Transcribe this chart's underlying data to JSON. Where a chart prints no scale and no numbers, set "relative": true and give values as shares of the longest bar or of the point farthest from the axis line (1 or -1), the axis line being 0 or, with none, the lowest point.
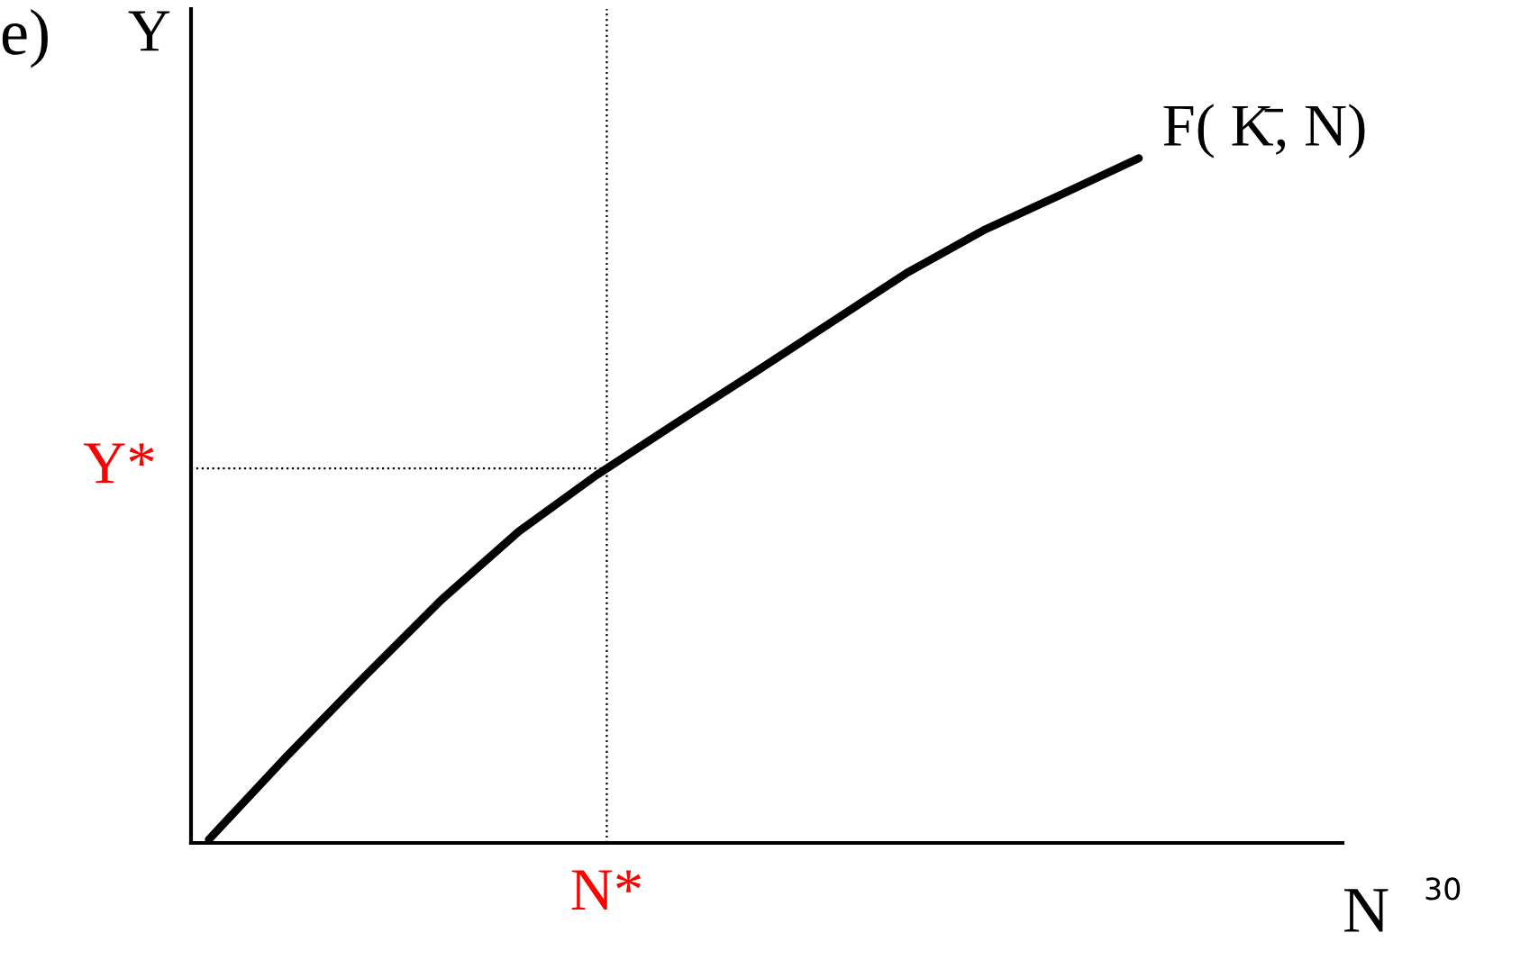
{
  "chart_data": {
    "type": "line",
    "relative": true,
    "xlabel": "N",
    "ylabel": "Y",
    "categories": [
      null,
      null,
      null,
      null,
      null,
      null,
      null,
      null,
      null,
      null,
      null,
      null,
      null
    ],
    "series": [
      {
        "name": "F( K̄, N)",
        "color": "#000000",
        "values": [
          0.005,
          0.126,
          0.242,
          0.355,
          0.455,
          0.537,
          0.611,
          0.684,
          0.758,
          0.832,
          0.895,
          0.947,
          1.0
        ]
      }
    ],
    "ref_lines": [
      {
        "axis": "y",
        "value": 0.547,
        "label": "Y*",
        "color": "#000000",
        "line_style": "dotted"
      }
    ],
    "line_style": "solid",
    "marker": "none",
    "grid": false,
    "legend": false,
    "annotations": [
      "e)",
      "30",
      "N*"
    ]
  }
}
